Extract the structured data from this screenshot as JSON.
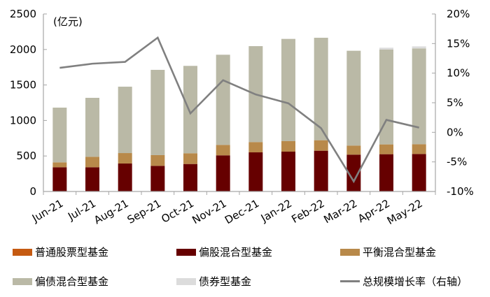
{
  "chart_data": {
    "type": "bar",
    "subtype": "stacked_bar_with_line_secondary_axis",
    "unit_label": "(亿元)",
    "categories": [
      "Jun-21",
      "Jul-21",
      "Aug-21",
      "Sep-21",
      "Oct-21",
      "Nov-21",
      "Dec-21",
      "Jan-22",
      "Feb-22",
      "Mar-22",
      "Apr-22",
      "May-22"
    ],
    "series": [
      {
        "name": "普通股票型基金",
        "type": "bar",
        "axis": "left",
        "color": "#C55A11",
        "values": [
          2,
          2,
          2,
          2,
          3,
          3,
          3,
          3,
          3,
          3,
          3,
          3
        ]
      },
      {
        "name": "偏股混合型基金",
        "type": "bar",
        "axis": "left",
        "color": "#660000",
        "values": [
          339,
          339,
          392,
          359,
          384,
          506,
          548,
          558,
          571,
          516,
          522,
          525
        ]
      },
      {
        "name": "平衡混合型基金",
        "type": "bar",
        "axis": "left",
        "color": "#B8894A",
        "values": [
          69,
          148,
          147,
          151,
          151,
          147,
          145,
          148,
          148,
          128,
          138,
          138
        ]
      },
      {
        "name": "偏债混合型基金",
        "type": "bar",
        "axis": "left",
        "color": "#BAB9A6",
        "values": [
          771,
          830,
          935,
          1201,
          1231,
          1270,
          1351,
          1440,
          1443,
          1335,
          1335,
          1349
        ]
      },
      {
        "name": "债券型基金",
        "type": "bar",
        "axis": "left",
        "color": "#DCDCDC",
        "values": [
          0,
          0,
          0,
          0,
          0,
          0,
          0,
          0,
          0,
          0,
          27,
          29
        ]
      },
      {
        "name": "总规模增长率（右轴）",
        "type": "line",
        "axis": "right",
        "color": "#808080",
        "values": [
          10.9,
          11.6,
          11.9,
          16.0,
          3.2,
          8.8,
          6.4,
          4.9,
          0.7,
          -8.3,
          2.1,
          0.8
        ]
      }
    ],
    "totals": [
      1181,
      1319,
      1476,
      1713,
      1769,
      1926,
      2047,
      2149,
      2165,
      1982,
      2025,
      2044
    ],
    "left_axis": {
      "min": 0,
      "max": 2500,
      "ticks": [
        0,
        500,
        1000,
        1500,
        2000,
        2500
      ]
    },
    "right_axis": {
      "min": -10,
      "max": 20,
      "ticks": [
        "-10%",
        "-5%",
        "0%",
        "5%",
        "10%",
        "15%",
        "20%"
      ],
      "tick_values": [
        -10,
        -5,
        0,
        5,
        10,
        15,
        20
      ]
    },
    "title": "",
    "xlabel": "",
    "ylabel": "(亿元)",
    "grid": false,
    "legend_position": "bottom"
  },
  "legend": [
    {
      "label": "普通股票型基金",
      "kind": "box",
      "color": "#C55A11"
    },
    {
      "label": "偏股混合型基金",
      "kind": "box",
      "color": "#660000"
    },
    {
      "label": "平衡混合型基金",
      "kind": "box",
      "color": "#B8894A"
    },
    {
      "label": "偏债混合型基金",
      "kind": "box",
      "color": "#BAB9A6"
    },
    {
      "label": "债券型基金",
      "kind": "box",
      "color": "#DCDCDC"
    },
    {
      "label": "总规模增长率（右轴）",
      "kind": "line",
      "color": "#808080"
    }
  ]
}
